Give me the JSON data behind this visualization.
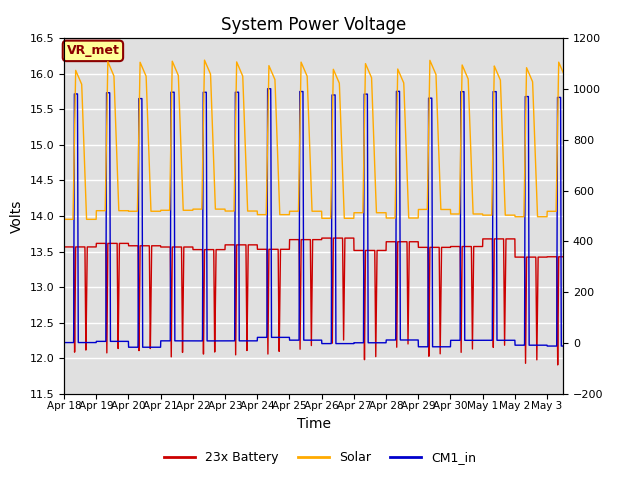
{
  "title": "System Power Voltage",
  "xlabel": "Time",
  "ylabel_left": "Volts",
  "ylim_left": [
    11.5,
    16.5
  ],
  "ylim_right": [
    -200,
    1200
  ],
  "yticks_left": [
    11.5,
    12.0,
    12.5,
    13.0,
    13.5,
    14.0,
    14.5,
    15.0,
    15.5,
    16.0,
    16.5
  ],
  "yticks_right": [
    -200,
    0,
    200,
    400,
    600,
    800,
    1000,
    1200
  ],
  "background_color": "#e0e0e0",
  "legend_entries": [
    "23x Battery",
    "Solar",
    "CM1_in"
  ],
  "legend_colors": [
    "#cc0000",
    "#ffaa00",
    "#0000cc"
  ],
  "annotation_text": "VR_met",
  "annotation_color": "#8B0000",
  "annotation_bg": "#ffff99",
  "tick_labels": [
    "Apr 18",
    "Apr 19",
    "Apr 20",
    "Apr 21",
    "Apr 22",
    "Apr 23",
    "Apr 24",
    "Apr 25",
    "Apr 26",
    "Apr 27",
    "Apr 28",
    "Apr 29",
    "Apr 30",
    "May 1",
    "May 2",
    "May 3"
  ],
  "xlim": [
    0,
    15.5
  ]
}
